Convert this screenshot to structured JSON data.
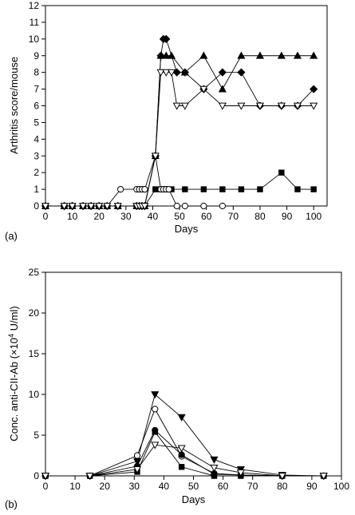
{
  "chart_data": [
    {
      "panel_label": "(a)",
      "type": "line",
      "xlabel": "Days",
      "ylabel": "Arthritis score/mouse",
      "xlim": [
        0,
        105
      ],
      "ylim": [
        0,
        12
      ],
      "xticks": [
        0,
        10,
        20,
        30,
        40,
        50,
        60,
        70,
        80,
        90,
        100
      ],
      "yticks": [
        0,
        1,
        2,
        3,
        4,
        5,
        6,
        7,
        8,
        9,
        10,
        11,
        12
      ],
      "grid": false,
      "series": [
        {
          "marker": "filled-square",
          "x": [
            0,
            7,
            10,
            14,
            17,
            20,
            23,
            27,
            34,
            35,
            36,
            37,
            41,
            43,
            45,
            47,
            52,
            59,
            66,
            73,
            80,
            88,
            94,
            100
          ],
          "y": [
            0,
            0,
            0,
            0,
            0,
            0,
            0,
            0,
            0,
            0,
            0,
            0,
            1,
            1,
            1,
            1,
            1,
            1,
            1,
            1,
            1,
            2,
            1,
            1
          ]
        },
        {
          "marker": "open-circle",
          "x": [
            0,
            7,
            10,
            14,
            17,
            20,
            23,
            28,
            34,
            35,
            36,
            37,
            41,
            43,
            44,
            45,
            46,
            49,
            52,
            59,
            66
          ],
          "y": [
            0,
            0,
            0,
            0,
            0,
            0,
            0,
            1,
            1,
            1,
            1,
            1,
            3,
            1,
            1,
            1,
            1,
            0,
            0,
            0,
            0
          ]
        },
        {
          "marker": "filled-diamond",
          "x": [
            0,
            7,
            10,
            14,
            17,
            20,
            23,
            27,
            34,
            35,
            36,
            37,
            41,
            43,
            44,
            45,
            49,
            52,
            59,
            66,
            73,
            80,
            88,
            94,
            100
          ],
          "y": [
            0,
            0,
            0,
            0,
            0,
            0,
            0,
            0,
            0,
            0,
            0,
            0,
            3,
            9,
            10,
            10,
            8,
            8,
            7,
            8,
            8,
            6,
            6,
            6,
            7
          ]
        },
        {
          "marker": "filled-triangle-up",
          "x": [
            0,
            7,
            10,
            14,
            17,
            20,
            23,
            27,
            34,
            35,
            36,
            37,
            41,
            43,
            45,
            47,
            52,
            59,
            66,
            73,
            80,
            88,
            94,
            100
          ],
          "y": [
            0,
            0,
            0,
            0,
            0,
            0,
            0,
            0,
            0,
            0,
            0,
            0,
            3,
            9,
            9,
            9,
            8,
            9,
            7,
            9,
            9,
            9,
            9,
            9
          ]
        },
        {
          "marker": "open-triangle-down",
          "x": [
            0,
            7,
            10,
            14,
            17,
            20,
            23,
            27,
            34,
            35,
            36,
            37,
            41,
            43,
            45,
            47,
            49,
            52,
            59,
            66,
            73,
            80,
            88,
            94,
            100
          ],
          "y": [
            0,
            0,
            0,
            0,
            0,
            0,
            0,
            0,
            0,
            0,
            0,
            0,
            3,
            8,
            8,
            8,
            6,
            6,
            7,
            6,
            6,
            6,
            6,
            6,
            6
          ]
        }
      ]
    },
    {
      "panel_label": "(b)",
      "type": "line",
      "xlabel": "Days",
      "ylabel_main": "Conc. anti-CII-Ab (×10",
      "ylabel_exp": "4",
      "ylabel_end": " U/ml)",
      "xlim": [
        0,
        100
      ],
      "ylim": [
        0,
        25
      ],
      "xticks": [
        0,
        10,
        20,
        30,
        40,
        50,
        60,
        70,
        80,
        90,
        100
      ],
      "yticks": [
        0,
        5,
        10,
        15,
        20,
        25
      ],
      "grid": false,
      "series": [
        {
          "marker": "filled-triangle-down",
          "x": [
            0,
            15,
            31,
            37,
            46,
            57,
            66,
            80,
            94
          ],
          "y": [
            0,
            0,
            1.8,
            10,
            7.2,
            2,
            0.8,
            0.1,
            0
          ]
        },
        {
          "marker": "open-circle",
          "x": [
            0,
            15,
            31,
            37,
            46,
            57,
            66,
            80,
            94
          ],
          "y": [
            0,
            0,
            2.5,
            8.2,
            2.4,
            0.3,
            0.1,
            0,
            0
          ]
        },
        {
          "marker": "filled-circle",
          "x": [
            0,
            15,
            31,
            37,
            46,
            57,
            66,
            80,
            94
          ],
          "y": [
            0,
            0,
            1.2,
            5.6,
            2.6,
            0.2,
            0.1,
            0,
            0
          ]
        },
        {
          "marker": "filled-square",
          "x": [
            0,
            15,
            31,
            37,
            46,
            57,
            66,
            80,
            94
          ],
          "y": [
            0,
            0,
            0.5,
            5.4,
            1.1,
            0,
            0,
            0,
            0
          ]
        },
        {
          "marker": "open-triangle-down",
          "x": [
            0,
            15,
            31,
            37,
            46,
            57,
            66,
            80,
            94
          ],
          "y": [
            0,
            0,
            0.8,
            3.8,
            3.4,
            1,
            0.4,
            0,
            0
          ]
        }
      ]
    }
  ]
}
